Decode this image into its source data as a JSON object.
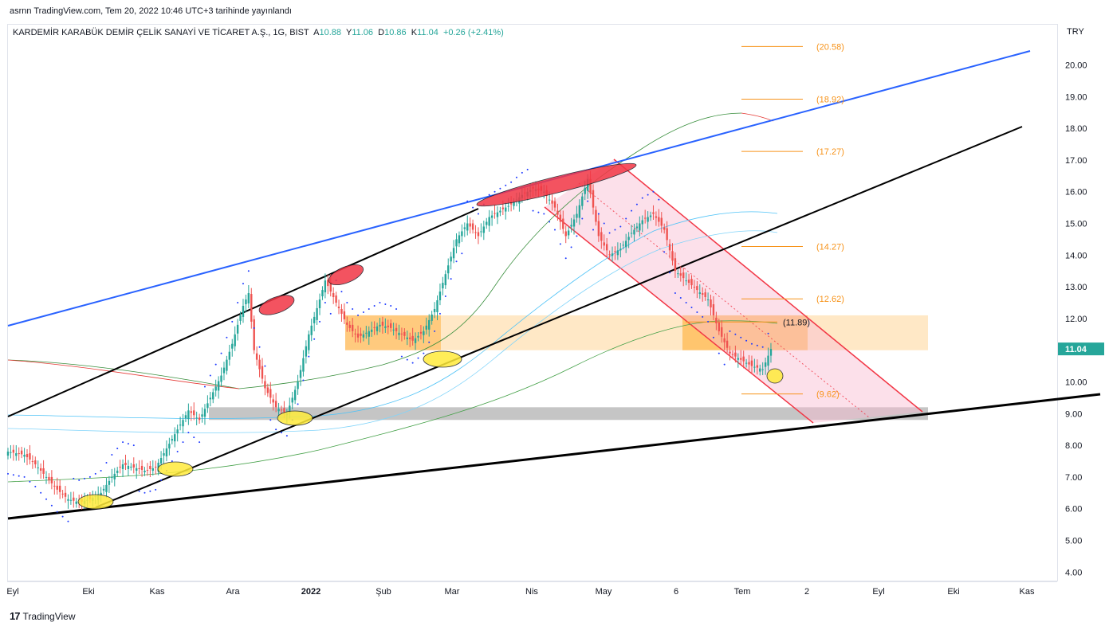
{
  "header": {
    "published": "asrnn TradingView.com, Tem 20, 2022 10:46 UTC+3 tarihinde yayınlandı"
  },
  "legend": {
    "symbol": "KARDEMİR KARABÜK DEMİR ÇELİK SANAYİ VE TİCARET A.Ş., 1G, BIST",
    "open_label": "A",
    "open": "10.88",
    "high_label": "Y",
    "high": "11.06",
    "low_label": "D",
    "low": "10.86",
    "close_label": "K",
    "close": "11.04",
    "change": "+0.26 (+2.41%)"
  },
  "branding": {
    "logo_text": "TradingView",
    "logo_mark": "17"
  },
  "colors": {
    "up": "#26a69a",
    "down": "#ef5350",
    "fib": "#f7931a",
    "channel": "#f23645",
    "trendline_blue": "#2962ff",
    "trendline_black": "#000000"
  },
  "chart_data": {
    "type": "candlestick",
    "currency": "TRY",
    "y_ticks": [
      "20.00",
      "19.00",
      "18.00",
      "17.00",
      "16.00",
      "15.00",
      "14.00",
      "13.00",
      "12.00",
      "11.00",
      "10.00",
      "9.00",
      "8.00",
      "7.00",
      "6.00",
      "5.00",
      "4.00"
    ],
    "x_ticks": [
      "Eyl",
      "Eki",
      "Kas",
      "Ara",
      "2022",
      "Şub",
      "Mar",
      "Nis",
      "May",
      "6",
      "Tem",
      "2",
      "Eyl",
      "Eki",
      "Kas"
    ],
    "last_price": "11.04",
    "fib_levels": [
      {
        "label": "(20.58)",
        "value": 20.58
      },
      {
        "label": "(18.92)",
        "value": 18.92
      },
      {
        "label": "(17.27)",
        "value": 17.27
      },
      {
        "label": "(14.27)",
        "value": 14.27
      },
      {
        "label": "(12.62)",
        "value": 12.62
      },
      {
        "label": "(11.89)",
        "value": 11.89
      },
      {
        "label": "(9.62)",
        "value": 9.62
      }
    ],
    "price_path": [
      [
        0,
        7.8
      ],
      [
        6,
        7.7
      ],
      [
        10,
        7.4
      ],
      [
        14,
        7.0
      ],
      [
        18,
        6.6
      ],
      [
        22,
        6.3
      ],
      [
        26,
        6.2
      ],
      [
        30,
        6.3
      ],
      [
        34,
        6.5
      ],
      [
        38,
        7.0
      ],
      [
        42,
        7.4
      ],
      [
        46,
        7.3
      ],
      [
        50,
        7.2
      ],
      [
        54,
        7.3
      ],
      [
        58,
        7.9
      ],
      [
        62,
        8.5
      ],
      [
        66,
        9.1
      ],
      [
        70,
        8.8
      ],
      [
        74,
        9.5
      ],
      [
        78,
        10.2
      ],
      [
        82,
        11.2
      ],
      [
        86,
        12.4
      ],
      [
        88,
        12.8
      ],
      [
        90,
        11.0
      ],
      [
        94,
        9.8
      ],
      [
        98,
        9.2
      ],
      [
        102,
        9.0
      ],
      [
        106,
        10.0
      ],
      [
        110,
        11.5
      ],
      [
        114,
        12.6
      ],
      [
        116,
        13.2
      ],
      [
        120,
        12.5
      ],
      [
        124,
        11.8
      ],
      [
        128,
        11.4
      ],
      [
        132,
        11.6
      ],
      [
        136,
        11.8
      ],
      [
        140,
        11.7
      ],
      [
        144,
        11.5
      ],
      [
        148,
        11.3
      ],
      [
        152,
        11.6
      ],
      [
        156,
        12.3
      ],
      [
        160,
        13.4
      ],
      [
        164,
        14.5
      ],
      [
        168,
        15.0
      ],
      [
        172,
        14.6
      ],
      [
        176,
        15.2
      ],
      [
        180,
        15.4
      ],
      [
        184,
        15.6
      ],
      [
        188,
        15.9
      ],
      [
        192,
        16.1
      ],
      [
        196,
        16.0
      ],
      [
        200,
        15.5
      ],
      [
        204,
        14.6
      ],
      [
        208,
        15.3
      ],
      [
        212,
        16.4
      ],
      [
        216,
        14.6
      ],
      [
        220,
        14.0
      ],
      [
        224,
        14.2
      ],
      [
        228,
        14.7
      ],
      [
        232,
        15.1
      ],
      [
        236,
        15.3
      ],
      [
        240,
        14.8
      ],
      [
        244,
        13.5
      ],
      [
        248,
        13.2
      ],
      [
        252,
        12.9
      ],
      [
        256,
        12.6
      ],
      [
        260,
        11.6
      ],
      [
        264,
        10.9
      ],
      [
        268,
        10.7
      ],
      [
        272,
        10.5
      ],
      [
        276,
        10.4
      ],
      [
        279,
        11.04
      ]
    ]
  }
}
